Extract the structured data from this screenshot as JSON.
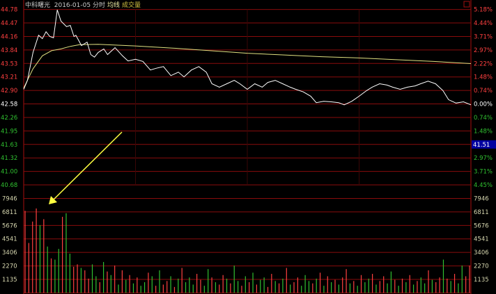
{
  "header": {
    "stock_name": "中科曙光",
    "date": "2016-01-05",
    "mode": "分时",
    "ma_label": "均线",
    "volume_label": "成交量"
  },
  "colors": {
    "background": "#000000",
    "grid": "#8a0c0c",
    "price_line": "#ffffff",
    "avg_line": "#e0e080",
    "up": "#ff4040",
    "down": "#30c030",
    "volume_label": "#d8d8b0",
    "highlight": "#0000a0",
    "arrow": "#ffff40"
  },
  "chart_data": {
    "type": "line",
    "title": "中科曙光 2016-01-05 分时",
    "prev_close": 42.58,
    "ylim": [
      40.68,
      44.78
    ],
    "xlim": [
      0,
      240
    ],
    "grid": true,
    "price_ticks": [
      "44.78",
      "44.47",
      "44.16",
      "43.84",
      "43.53",
      "43.21",
      "42.90",
      "42.58",
      "42.26",
      "41.95",
      "41.63",
      "41.32",
      "41.00",
      "40.68"
    ],
    "percent_ticks": [
      "5.18%",
      "4.44%",
      "3.71%",
      "2.97%",
      "2.22%",
      "1.48%",
      "0.74%",
      "0.00%",
      "0.74%",
      "1.48%",
      "41.51",
      "2.97%",
      "3.71%",
      "4.45%"
    ],
    "cursor_price": "41.51",
    "volume_ticks": [
      "7946",
      "6811",
      "5676",
      "4541",
      "3406",
      "2270",
      "1135"
    ],
    "volume_ylim": [
      0,
      7946
    ],
    "price": {
      "minute": [
        0,
        2,
        5,
        8,
        10,
        12,
        14,
        16,
        18,
        20,
        23,
        25,
        27,
        28,
        31,
        34,
        36,
        38,
        40,
        43,
        45,
        49,
        53,
        56,
        60,
        64,
        68,
        71,
        75,
        79,
        83,
        86,
        90,
        94,
        98,
        101,
        105,
        109,
        113,
        116,
        120,
        124,
        128,
        131,
        135,
        139,
        143,
        146,
        150,
        154,
        157,
        161,
        165,
        169,
        172,
        176,
        180,
        184,
        187,
        191,
        195,
        198,
        202,
        206,
        210,
        213,
        217,
        221,
        225,
        228,
        232,
        236,
        240
      ],
      "values": [
        42.92,
        43.13,
        43.78,
        44.18,
        44.1,
        44.26,
        44.15,
        44.12,
        44.77,
        44.51,
        44.38,
        44.41,
        44.15,
        44.18,
        43.94,
        44.02,
        43.73,
        43.67,
        43.78,
        43.86,
        43.73,
        43.89,
        43.7,
        43.58,
        43.62,
        43.57,
        43.37,
        43.41,
        43.45,
        43.24,
        43.32,
        43.21,
        43.37,
        43.45,
        43.32,
        43.05,
        42.97,
        43.05,
        43.13,
        43.05,
        42.92,
        43.05,
        42.97,
        43.08,
        43.13,
        43.05,
        42.97,
        42.92,
        42.86,
        42.76,
        42.61,
        42.64,
        42.63,
        42.61,
        42.56,
        42.64,
        42.76,
        42.89,
        42.97,
        43.05,
        43.02,
        42.97,
        42.92,
        42.97,
        43.0,
        43.05,
        43.11,
        43.05,
        42.89,
        42.68,
        42.6,
        42.63,
        42.56
      ]
    },
    "average": {
      "minute": [
        0,
        5,
        10,
        15,
        20,
        25,
        30,
        40,
        60,
        80,
        100,
        120,
        140,
        160,
        180,
        200,
        220,
        240
      ],
      "values": [
        42.95,
        43.4,
        43.7,
        43.82,
        43.86,
        43.92,
        43.96,
        43.97,
        43.93,
        43.88,
        43.82,
        43.76,
        43.72,
        43.68,
        43.65,
        43.61,
        43.57,
        43.52
      ]
    },
    "volume": {
      "values": [
        6900,
        4200,
        6000,
        7100,
        5700,
        6200,
        3900,
        2900,
        2800,
        3700,
        6400,
        6700,
        3300,
        2200,
        2400,
        2100,
        1900,
        1200,
        2400,
        1400,
        900,
        2600,
        1800,
        1500,
        2300,
        700,
        1900,
        1100,
        1500,
        800,
        1300,
        600,
        900,
        1700,
        1400,
        600,
        1900,
        700,
        1000,
        1400,
        500,
        1200,
        2100,
        900,
        1300,
        700,
        1600,
        1100,
        600,
        2000,
        1300,
        900,
        700,
        1500,
        1200,
        800,
        2300,
        1000,
        600,
        1400,
        900,
        1700,
        700,
        1100,
        1300,
        500,
        1600,
        1000,
        800,
        1200,
        2100,
        700,
        900,
        1300,
        600,
        1500,
        1000,
        800,
        1200,
        1700,
        600,
        1400,
        900,
        1100,
        700,
        1300,
        2000,
        800,
        1000,
        600,
        1500,
        900,
        1200,
        1600,
        700,
        1000,
        1400,
        800,
        1800,
        1100,
        600,
        1200,
        900,
        1500,
        700,
        1000,
        1300,
        800,
        1900,
        1100,
        900,
        1300,
        2800,
        1200,
        1000,
        1600,
        800,
        2300,
        1400,
        2300
      ],
      "colors": "rrrrgrgrggrggrrgrrggrgrgrgrgrgrggrgrgrrgrgrgggrrggrgrrgrggrgrgrggrrgrgrgrrgggrgrgrgrgrrgrgrggrgrrggrgrgrgrggrgrrgrgrggrrgg"
    },
    "annotation": "yellow arrow pointing to early volume spike"
  }
}
